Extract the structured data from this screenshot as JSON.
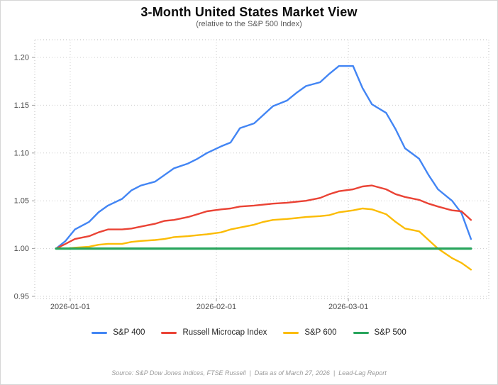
{
  "header": {
    "title": "3-Month United States Market View",
    "subtitle": "(relative to the S&P 500 Index)"
  },
  "footer": {
    "text": "Source: S&P Dow Jones Indices, FTSE Russell  |  Data as of March 27, 2026  |  Lead-Lag Report"
  },
  "colors": {
    "sp400": "#4285F4",
    "russell_microcap": "#EA4335",
    "sp600": "#FBBC05",
    "sp500": "#28A55C",
    "grid": "#cccccc",
    "plot_border": "#bdbdbd",
    "tick": "#9e9e9e",
    "axis_text": "#4d4d4d"
  },
  "chart_data": {
    "type": "line",
    "title": "3-Month United States Market View",
    "subtitle": "(relative to the S&P 500 Index)",
    "xlabel": "",
    "ylabel": "",
    "ylim": [
      0.95,
      1.2
    ],
    "yticks": [
      "0.95",
      "1.00",
      "1.05",
      "1.10",
      "1.15",
      "1.20"
    ],
    "ytick_values": [
      0.95,
      1.0,
      1.05,
      1.1,
      1.15,
      1.2
    ],
    "xticks": [
      "2026-01-01",
      "2026-02-01",
      "2026-03-01"
    ],
    "grid": true,
    "legend_position": "bottom",
    "x": [
      "2025-12-29",
      "2025-12-31",
      "2026-01-02",
      "2026-01-05",
      "2026-01-07",
      "2026-01-09",
      "2026-01-12",
      "2026-01-14",
      "2026-01-16",
      "2026-01-19",
      "2026-01-21",
      "2026-01-23",
      "2026-01-26",
      "2026-01-28",
      "2026-01-30",
      "2026-02-02",
      "2026-02-04",
      "2026-02-06",
      "2026-02-09",
      "2026-02-11",
      "2026-02-13",
      "2026-02-16",
      "2026-02-18",
      "2026-02-20",
      "2026-02-23",
      "2026-02-25",
      "2026-02-27",
      "2026-03-02",
      "2026-03-04",
      "2026-03-06",
      "2026-03-09",
      "2026-03-11",
      "2026-03-13",
      "2026-03-16",
      "2026-03-18",
      "2026-03-20",
      "2026-03-23",
      "2026-03-25",
      "2026-03-27"
    ],
    "series": [
      {
        "name": "S&P 400",
        "color": "#4285F4",
        "width": 2.4,
        "values": [
          1.0,
          1.008,
          1.02,
          1.028,
          1.038,
          1.045,
          1.052,
          1.061,
          1.066,
          1.07,
          1.077,
          1.084,
          1.089,
          1.094,
          1.1,
          1.107,
          1.111,
          1.126,
          1.131,
          1.14,
          1.149,
          1.155,
          1.163,
          1.17,
          1.174,
          1.183,
          1.191,
          1.191,
          1.168,
          1.151,
          1.142,
          1.125,
          1.105,
          1.094,
          1.077,
          1.062,
          1.05,
          1.037,
          1.01
        ]
      },
      {
        "name": "Russell Microcap Index",
        "color": "#EA4335",
        "width": 2.4,
        "values": [
          1.0,
          1.005,
          1.01,
          1.013,
          1.017,
          1.02,
          1.02,
          1.021,
          1.023,
          1.026,
          1.029,
          1.03,
          1.033,
          1.036,
          1.039,
          1.041,
          1.042,
          1.044,
          1.045,
          1.046,
          1.047,
          1.048,
          1.049,
          1.05,
          1.053,
          1.057,
          1.06,
          1.062,
          1.065,
          1.066,
          1.062,
          1.057,
          1.054,
          1.051,
          1.047,
          1.044,
          1.04,
          1.039,
          1.03
        ]
      },
      {
        "name": "S&P 600",
        "color": "#FBBC05",
        "width": 2.4,
        "values": [
          1.0,
          1.0,
          1.001,
          1.002,
          1.004,
          1.005,
          1.005,
          1.007,
          1.008,
          1.009,
          1.01,
          1.012,
          1.013,
          1.014,
          1.015,
          1.017,
          1.02,
          1.022,
          1.025,
          1.028,
          1.03,
          1.031,
          1.032,
          1.033,
          1.034,
          1.035,
          1.038,
          1.04,
          1.042,
          1.041,
          1.036,
          1.028,
          1.021,
          1.018,
          1.009,
          1.0,
          0.99,
          0.985,
          0.978
        ]
      },
      {
        "name": "S&P 500",
        "color": "#28A55C",
        "width": 3.2,
        "values": [
          1.0,
          1.0,
          1.0,
          1.0,
          1.0,
          1.0,
          1.0,
          1.0,
          1.0,
          1.0,
          1.0,
          1.0,
          1.0,
          1.0,
          1.0,
          1.0,
          1.0,
          1.0,
          1.0,
          1.0,
          1.0,
          1.0,
          1.0,
          1.0,
          1.0,
          1.0,
          1.0,
          1.0,
          1.0,
          1.0,
          1.0,
          1.0,
          1.0,
          1.0,
          1.0,
          1.0,
          1.0,
          1.0,
          1.0
        ]
      }
    ]
  }
}
